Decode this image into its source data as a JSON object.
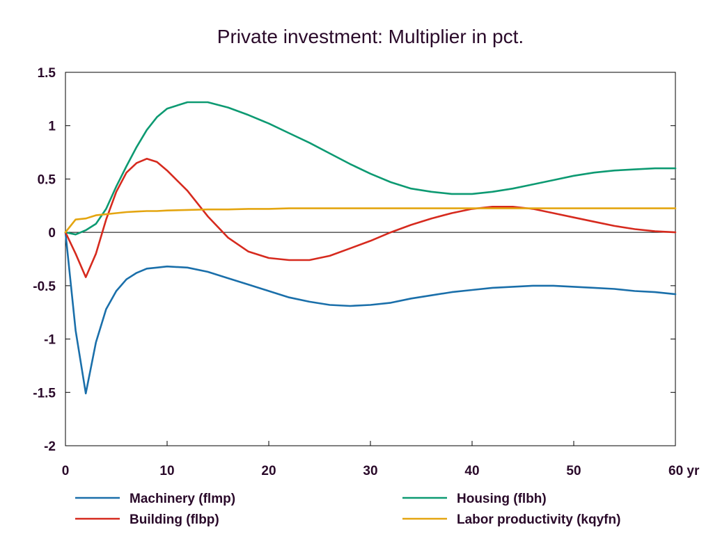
{
  "chart_data": {
    "type": "line",
    "title": "Private investment: Multiplier in pct.",
    "xlabel": "",
    "ylabel": "",
    "x_unit_label": "yr",
    "xlim": [
      0,
      60
    ],
    "ylim": [
      -2,
      1.5
    ],
    "x_ticks": [
      0,
      10,
      20,
      30,
      40,
      50,
      60
    ],
    "x_tick_labels": [
      "0",
      "10",
      "20",
      "30",
      "40",
      "50",
      "60 yr"
    ],
    "y_ticks": [
      -2,
      -1.5,
      -1,
      -0.5,
      0,
      0.5,
      1,
      1.5
    ],
    "y_tick_labels": [
      "-2",
      "-1.5",
      "-1",
      "-0.5",
      "0",
      "0.5",
      "1",
      "1.5"
    ],
    "grid": false,
    "zero_line": true,
    "legend_position": "bottom",
    "x": [
      0,
      1,
      2,
      3,
      4,
      5,
      6,
      7,
      8,
      9,
      10,
      12,
      14,
      16,
      18,
      20,
      22,
      24,
      26,
      28,
      30,
      32,
      34,
      36,
      38,
      40,
      42,
      44,
      46,
      48,
      50,
      52,
      54,
      56,
      58,
      60
    ],
    "series": [
      {
        "name": "Machinery (flmp)",
        "color": "#1a6faa",
        "values": [
          0,
          -0.92,
          -1.51,
          -1.03,
          -0.72,
          -0.55,
          -0.44,
          -0.38,
          -0.34,
          -0.33,
          -0.32,
          -0.33,
          -0.37,
          -0.43,
          -0.49,
          -0.55,
          -0.61,
          -0.65,
          -0.68,
          -0.69,
          -0.68,
          -0.66,
          -0.62,
          -0.59,
          -0.56,
          -0.54,
          -0.52,
          -0.51,
          -0.5,
          -0.5,
          -0.51,
          -0.52,
          -0.53,
          -0.55,
          -0.56,
          -0.58
        ]
      },
      {
        "name": "Housing (flbh)",
        "color": "#0d9a72",
        "values": [
          0,
          -0.02,
          0.02,
          0.08,
          0.22,
          0.43,
          0.62,
          0.8,
          0.96,
          1.08,
          1.16,
          1.22,
          1.22,
          1.17,
          1.1,
          1.02,
          0.93,
          0.84,
          0.74,
          0.64,
          0.55,
          0.47,
          0.41,
          0.38,
          0.36,
          0.36,
          0.38,
          0.41,
          0.45,
          0.49,
          0.53,
          0.56,
          0.58,
          0.59,
          0.6,
          0.6
        ]
      },
      {
        "name": "Building (flbp)",
        "color": "#d62a1e",
        "values": [
          0,
          -0.2,
          -0.42,
          -0.2,
          0.12,
          0.38,
          0.56,
          0.65,
          0.69,
          0.66,
          0.58,
          0.39,
          0.15,
          -0.05,
          -0.18,
          -0.24,
          -0.26,
          -0.26,
          -0.22,
          -0.15,
          -0.08,
          0.0,
          0.07,
          0.13,
          0.18,
          0.22,
          0.24,
          0.24,
          0.22,
          0.18,
          0.14,
          0.1,
          0.06,
          0.03,
          0.01,
          0.0
        ]
      },
      {
        "name": "Labor productivity (kqyfn)",
        "color": "#e4a510",
        "values": [
          0,
          0.12,
          0.13,
          0.16,
          0.17,
          0.18,
          0.19,
          0.195,
          0.2,
          0.2,
          0.205,
          0.21,
          0.215,
          0.215,
          0.22,
          0.22,
          0.225,
          0.225,
          0.225,
          0.225,
          0.225,
          0.225,
          0.225,
          0.225,
          0.225,
          0.225,
          0.225,
          0.225,
          0.225,
          0.225,
          0.225,
          0.225,
          0.225,
          0.225,
          0.225,
          0.225
        ]
      }
    ]
  }
}
